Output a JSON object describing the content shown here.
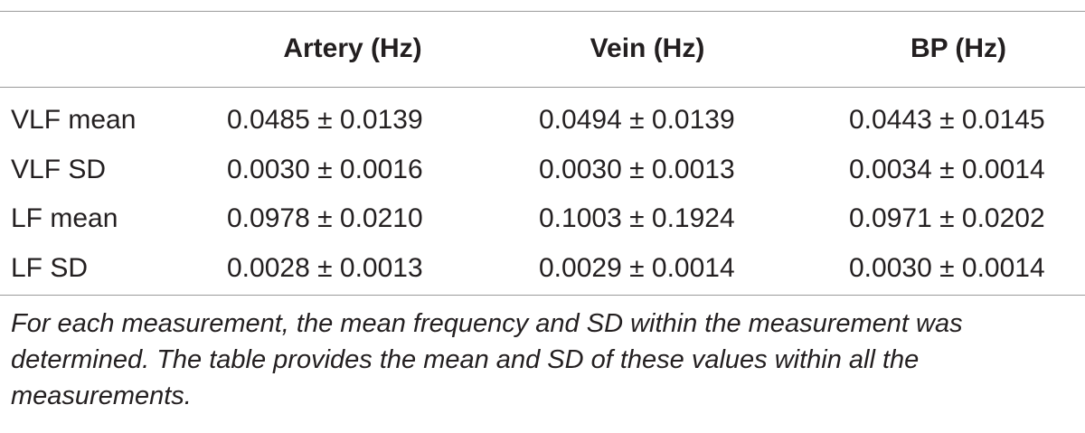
{
  "table": {
    "headers": [
      "",
      "Artery (Hz)",
      "Vein (Hz)",
      "BP (Hz)"
    ],
    "rows": [
      {
        "label": "VLF mean",
        "artery": "0.0485 ± 0.0139",
        "vein": "0.0494 ± 0.0139",
        "bp": "0.0443 ± 0.0145"
      },
      {
        "label": "VLF SD",
        "artery": "0.0030 ± 0.0016",
        "vein": "0.0030 ± 0.0013",
        "bp": "0.0034 ± 0.0014"
      },
      {
        "label": "LF mean",
        "artery": "0.0978 ± 0.0210",
        "vein": "0.1003 ± 0.1924",
        "bp": "0.0971 ± 0.0202"
      },
      {
        "label": "LF SD",
        "artery": "0.0028 ± 0.0013",
        "vein": "0.0029 ± 0.0014",
        "bp": "0.0030 ± 0.0014"
      }
    ],
    "footnote": "For each measurement, the mean frequency and SD within the measurement was determined. The table provides the mean and SD of these values within all the measurements."
  }
}
